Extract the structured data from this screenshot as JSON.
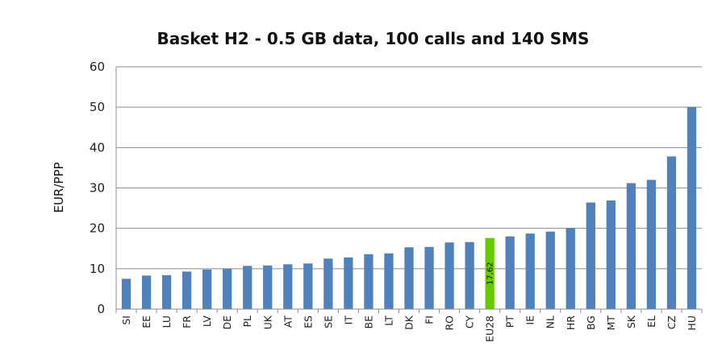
{
  "chart_data": {
    "type": "bar",
    "title": "Basket H2 - 0.5 GB data, 100 calls and 140 SMS",
    "xlabel": "",
    "ylabel": "EUR/PPP",
    "ylim": [
      0,
      60
    ],
    "yticks": [
      0,
      10,
      20,
      30,
      40,
      50,
      60
    ],
    "grid": true,
    "categories": [
      "SI",
      "EE",
      "LU",
      "FR",
      "LV",
      "DE",
      "PL",
      "UK",
      "AT",
      "ES",
      "SE",
      "IT",
      "BE",
      "LT",
      "DK",
      "FI",
      "RO",
      "CY",
      "EU28",
      "PT",
      "IE",
      "NL",
      "HR",
      "BG",
      "MT",
      "SK",
      "EL",
      "CZ",
      "HU"
    ],
    "values": [
      7.5,
      8.3,
      8.4,
      9.3,
      9.8,
      10.0,
      10.7,
      10.8,
      11.1,
      11.3,
      12.5,
      12.8,
      13.6,
      13.8,
      15.3,
      15.4,
      16.5,
      16.6,
      17.62,
      18.0,
      18.7,
      19.2,
      20.1,
      26.4,
      26.9,
      31.2,
      32.0,
      37.8,
      50.0
    ],
    "highlight": {
      "category": "EU28",
      "label": "17,62",
      "color": "#66cc00"
    },
    "bar_color": "#4f81bd",
    "grid_color": "#8c8c8c"
  }
}
